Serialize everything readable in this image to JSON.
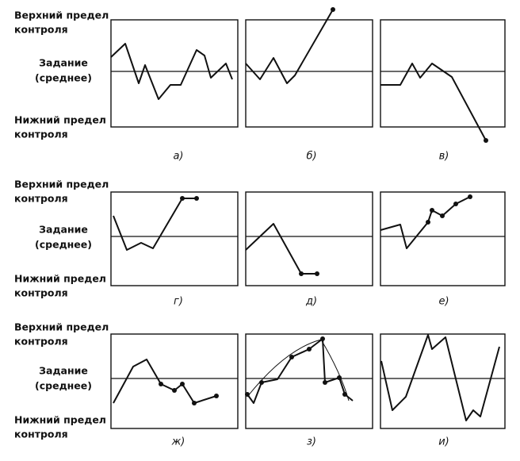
{
  "rows": [
    {
      "upper": [
        "Верхний предел",
        "контроля"
      ],
      "setpoint": [
        "Задание",
        "(среднее)"
      ],
      "lower": [
        "Нижний предел",
        "контроля"
      ],
      "panels": [
        "а)",
        "б)",
        "в)"
      ]
    },
    {
      "upper": [
        "Верхний предел",
        "контроля"
      ],
      "setpoint": [
        "Задание",
        "(среднее)"
      ],
      "lower": [
        "Нижний предел",
        "контроля"
      ],
      "panels": [
        "г)",
        "д)",
        "е)"
      ]
    },
    {
      "upper": [
        "Верхний предел",
        "контроля"
      ],
      "setpoint": [
        "Задание",
        "(среднее)"
      ],
      "lower": [
        "Нижний предел",
        "контроля"
      ],
      "panels": [
        "ж)",
        "з)",
        "и)"
      ]
    }
  ]
}
